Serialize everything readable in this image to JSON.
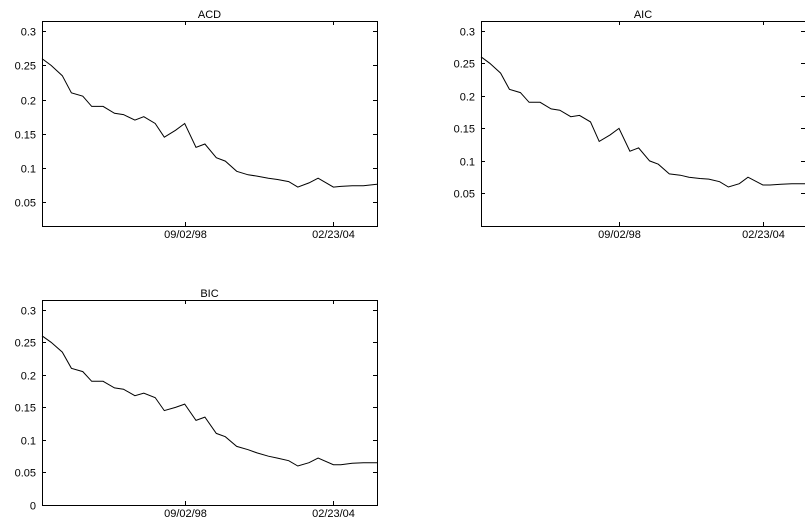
{
  "chart_data": [
    {
      "type": "line",
      "title": "ACD",
      "xlabel": "",
      "ylabel": "",
      "xlim": [
        "06/01/93",
        "10/01/05"
      ],
      "ylim": [
        0.015,
        0.315
      ],
      "yticks": [
        0.05,
        0.1,
        0.15,
        0.2,
        0.25,
        0.3
      ],
      "ytick_labels": [
        "0.05",
        "0.1",
        "0.15",
        "0.2",
        "0.25",
        "0.3"
      ],
      "xticks": [
        "09/02/98",
        "02/23/04"
      ],
      "grid": false,
      "series": [
        {
          "x": [
            "06/01/93",
            "10/01/93",
            "03/01/94",
            "07/01/94",
            "12/01/94",
            "04/01/95",
            "09/01/95",
            "02/01/96",
            "06/01/96",
            "11/01/96",
            "03/01/97",
            "08/01/97",
            "12/01/97",
            "05/01/98",
            "09/02/98",
            "02/01/99",
            "06/01/99",
            "11/01/99",
            "03/01/00",
            "08/01/00",
            "01/01/01",
            "05/01/01",
            "10/01/01",
            "02/01/02",
            "07/01/02",
            "11/01/02",
            "04/01/03",
            "08/01/03",
            "02/23/04",
            "06/01/04",
            "11/01/04",
            "04/01/05",
            "10/01/05"
          ],
          "values": [
            0.26,
            0.25,
            0.235,
            0.21,
            0.205,
            0.19,
            0.19,
            0.18,
            0.178,
            0.17,
            0.175,
            0.165,
            0.145,
            0.155,
            0.165,
            0.13,
            0.135,
            0.115,
            0.11,
            0.095,
            0.09,
            0.088,
            0.085,
            0.083,
            0.08,
            0.072,
            0.078,
            0.085,
            0.072,
            0.073,
            0.074,
            0.074,
            0.076
          ]
        }
      ]
    },
    {
      "type": "line",
      "title": "AIC",
      "xlabel": "",
      "ylabel": "",
      "xlim": [
        "06/01/93",
        "10/01/05"
      ],
      "ylim": [
        0.0,
        0.315
      ],
      "yticks": [
        0.05,
        0.1,
        0.15,
        0.2,
        0.25,
        0.3
      ],
      "ytick_labels": [
        "0.05",
        "0.1",
        "0.15",
        "0.2",
        "0.25",
        "0.3"
      ],
      "xticks": [
        "09/02/98",
        "02/23/04"
      ],
      "grid": false,
      "series": [
        {
          "x": [
            "06/01/93",
            "10/01/93",
            "03/01/94",
            "07/01/94",
            "12/01/94",
            "04/01/95",
            "09/01/95",
            "02/01/96",
            "06/01/96",
            "11/01/96",
            "03/01/97",
            "08/01/97",
            "12/01/97",
            "05/01/98",
            "09/02/98",
            "02/01/99",
            "06/01/99",
            "11/01/99",
            "03/01/00",
            "08/01/00",
            "01/01/01",
            "05/01/01",
            "10/01/01",
            "02/01/02",
            "07/01/02",
            "11/01/02",
            "04/01/03",
            "08/01/03",
            "02/23/04",
            "06/01/04",
            "11/01/04",
            "04/01/05",
            "10/01/05"
          ],
          "values": [
            0.26,
            0.25,
            0.235,
            0.21,
            0.205,
            0.19,
            0.19,
            0.18,
            0.178,
            0.168,
            0.17,
            0.16,
            0.13,
            0.14,
            0.15,
            0.115,
            0.12,
            0.1,
            0.095,
            0.08,
            0.078,
            0.075,
            0.073,
            0.072,
            0.068,
            0.06,
            0.065,
            0.075,
            0.063,
            0.063,
            0.064,
            0.065,
            0.065
          ]
        }
      ]
    },
    {
      "type": "line",
      "title": "BIC",
      "xlabel": "",
      "ylabel": "",
      "xlim": [
        "06/01/93",
        "10/01/05"
      ],
      "ylim": [
        0.0,
        0.315
      ],
      "yticks": [
        0,
        0.05,
        0.1,
        0.15,
        0.2,
        0.25,
        0.3
      ],
      "ytick_labels": [
        "0",
        "0.05",
        "0.1",
        "0.15",
        "0.2",
        "0.25",
        "0.3"
      ],
      "xticks": [
        "09/02/98",
        "02/23/04"
      ],
      "grid": false,
      "series": [
        {
          "x": [
            "06/01/93",
            "10/01/93",
            "03/01/94",
            "07/01/94",
            "12/01/94",
            "04/01/95",
            "09/01/95",
            "02/01/96",
            "06/01/96",
            "11/01/96",
            "03/01/97",
            "08/01/97",
            "12/01/97",
            "05/01/98",
            "09/02/98",
            "02/01/99",
            "06/01/99",
            "11/01/99",
            "03/01/00",
            "08/01/00",
            "01/01/01",
            "05/01/01",
            "10/01/01",
            "02/01/02",
            "07/01/02",
            "11/01/02",
            "04/01/03",
            "08/01/03",
            "02/23/04",
            "06/01/04",
            "11/01/04",
            "04/01/05",
            "10/01/05"
          ],
          "values": [
            0.26,
            0.25,
            0.235,
            0.21,
            0.205,
            0.19,
            0.19,
            0.18,
            0.178,
            0.168,
            0.172,
            0.165,
            0.145,
            0.15,
            0.155,
            0.13,
            0.135,
            0.11,
            0.105,
            0.09,
            0.085,
            0.08,
            0.075,
            0.072,
            0.068,
            0.06,
            0.065,
            0.072,
            0.062,
            0.062,
            0.064,
            0.065,
            0.065
          ]
        }
      ]
    }
  ]
}
